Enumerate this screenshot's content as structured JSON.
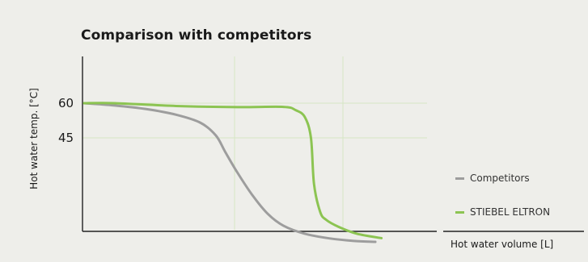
{
  "chart_data": {
    "type": "line",
    "title": "Comparison with competitors",
    "xlabel": "Hot water volume [L]",
    "ylabel": "Hot water temp. [°C]",
    "yticks": [
      "60",
      "45"
    ],
    "ylim": [
      0,
      80
    ],
    "xlim": [
      0,
      100
    ],
    "grid": true,
    "legend_position": "right",
    "series": [
      {
        "name": "Competitors",
        "color": "#9d9d9d",
        "x": [
          0,
          10,
          20,
          30,
          38,
          43,
          46,
          50,
          55,
          60,
          65,
          72,
          80,
          88,
          95
        ],
        "y": [
          60,
          59,
          57.5,
          55,
          51.5,
          46,
          39,
          30,
          20,
          12,
          7,
          3.5,
          1.5,
          0.4,
          0
        ]
      },
      {
        "name": "STIEBEL ELTRON",
        "color": "#8cc452",
        "x": [
          0,
          10,
          30,
          50,
          65,
          69,
          72,
          74,
          75,
          77,
          79,
          83,
          89,
          97
        ],
        "y": [
          60,
          60,
          58.8,
          58.3,
          58.4,
          57,
          54,
          45,
          25,
          13,
          9.5,
          6.5,
          3.5,
          1.6
        ]
      }
    ]
  }
}
